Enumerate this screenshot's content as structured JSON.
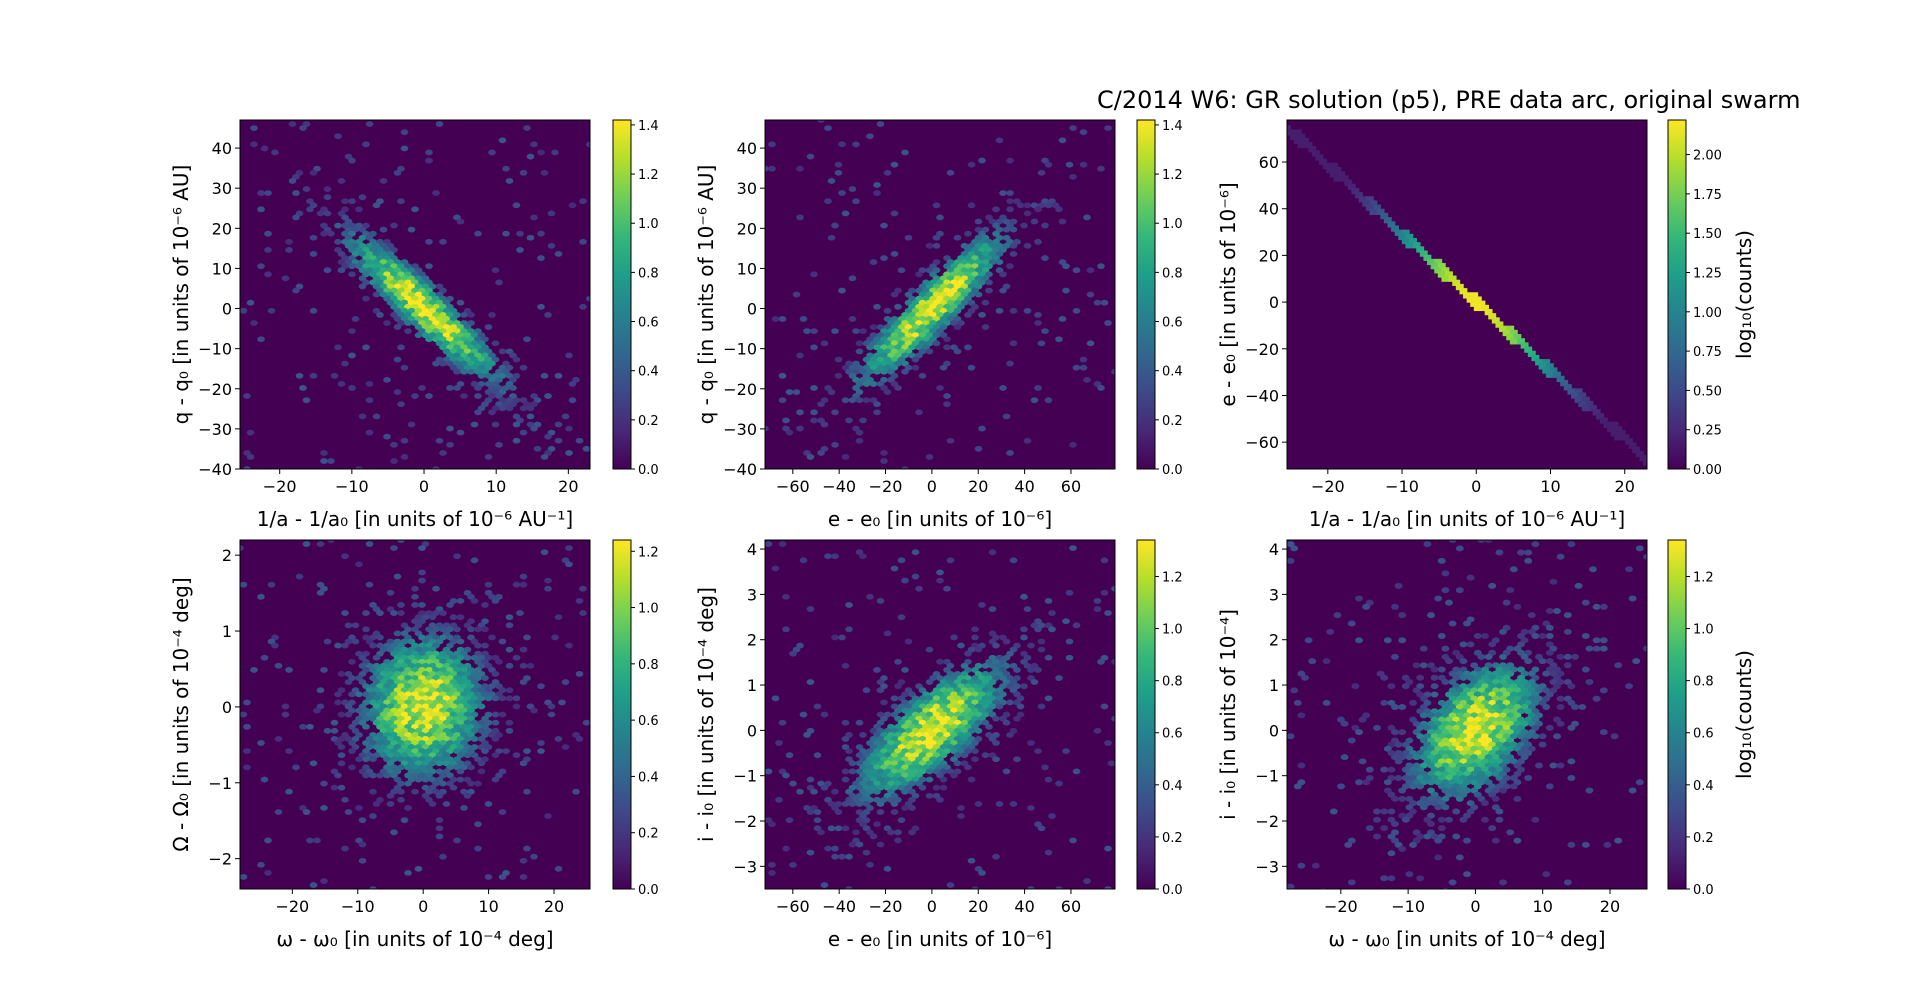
{
  "figure_title": "C/2014 W6: GR solution (p5), PRE data arc,  original swarm",
  "chart_data": [
    {
      "type": "heatmap",
      "subtype": "hexbin",
      "id": "p1",
      "xlabel": "1/a - 1/a₀ [in units of 10⁻⁶ AU⁻¹]",
      "ylabel": "q - q₀ [in units of 10⁻⁶ AU]",
      "xlim": [
        -25.5,
        23
      ],
      "ylim": [
        -40,
        47
      ],
      "xticks": [
        -20,
        -10,
        0,
        10,
        20
      ],
      "xtick_labels": [
        "−20",
        "−10",
        "0",
        "10",
        "20"
      ],
      "yticks": [
        -40,
        -30,
        -20,
        -10,
        0,
        10,
        20,
        30,
        40
      ],
      "ytick_labels": [
        "−40",
        "−30",
        "−20",
        "−10",
        "0",
        "10",
        "20",
        "30",
        "40"
      ],
      "sigma_x": 7.5,
      "sigma_y": 13,
      "correlation": -0.92,
      "colorbar": {
        "label": "",
        "range": [
          0,
          1.42
        ],
        "ticks": [
          0.0,
          0.2,
          0.4,
          0.6,
          0.8,
          1.0,
          1.2,
          1.4
        ],
        "tick_labels": [
          "0.0",
          "0.2",
          "0.4",
          "0.6",
          "0.8",
          "1.0",
          "1.2",
          "1.4"
        ]
      }
    },
    {
      "type": "heatmap",
      "subtype": "hexbin",
      "id": "p2",
      "xlabel": "e - e₀ [in units of 10⁻⁶]",
      "ylabel": "q - q₀ [in units of 10⁻⁶ AU]",
      "xlim": [
        -72,
        79
      ],
      "ylim": [
        -40,
        47
      ],
      "xticks": [
        -60,
        -40,
        -20,
        0,
        20,
        40,
        60
      ],
      "xtick_labels": [
        "−60",
        "−40",
        "−20",
        "0",
        "20",
        "40",
        "60"
      ],
      "yticks": [
        -40,
        -30,
        -20,
        -10,
        0,
        10,
        20,
        30,
        40
      ],
      "ytick_labels": [
        "−40",
        "−30",
        "−20",
        "−10",
        "0",
        "10",
        "20",
        "30",
        "40"
      ],
      "sigma_x": 22,
      "sigma_y": 13,
      "correlation": 0.9,
      "colorbar": {
        "label": "",
        "range": [
          0,
          1.42
        ],
        "ticks": [
          0.0,
          0.2,
          0.4,
          0.6,
          0.8,
          1.0,
          1.2,
          1.4
        ],
        "tick_labels": [
          "0.0",
          "0.2",
          "0.4",
          "0.6",
          "0.8",
          "1.0",
          "1.2",
          "1.4"
        ]
      }
    },
    {
      "type": "heatmap",
      "subtype": "hexbin",
      "id": "p3",
      "xlabel": "1/a - 1/a₀ [in units of 10⁻⁶ AU⁻¹]",
      "ylabel": "e - e₀ [in units of 10⁻⁶]",
      "xlim": [
        -25.5,
        23
      ],
      "ylim": [
        -71.5,
        78
      ],
      "xticks": [
        -20,
        -10,
        0,
        10,
        20
      ],
      "xtick_labels": [
        "−20",
        "−10",
        "0",
        "10",
        "20"
      ],
      "yticks": [
        -60,
        -40,
        -20,
        0,
        20,
        40,
        60
      ],
      "ytick_labels": [
        "−60",
        "−40",
        "−20",
        "0",
        "20",
        "40",
        "60"
      ],
      "sigma_x": 7.5,
      "sigma_y": 22,
      "correlation": -0.999,
      "colorbar": {
        "label": "log₁₀(counts)",
        "range": [
          0,
          2.22
        ],
        "ticks": [
          0.0,
          0.25,
          0.5,
          0.75,
          1.0,
          1.25,
          1.5,
          1.75,
          2.0
        ],
        "tick_labels": [
          "0.00",
          "0.25",
          "0.50",
          "0.75",
          "1.00",
          "1.25",
          "1.50",
          "1.75",
          "2.00"
        ]
      }
    },
    {
      "type": "heatmap",
      "subtype": "hexbin",
      "id": "p4",
      "xlabel": "ω - ω₀ [in units of 10⁻⁴ deg]",
      "ylabel": "Ω - Ω₀ [in units of 10⁻⁴ deg]",
      "xlim": [
        -28,
        25.5
      ],
      "ylim": [
        -2.4,
        2.2
      ],
      "xticks": [
        -20,
        -10,
        0,
        10,
        20
      ],
      "xtick_labels": [
        "−20",
        "−10",
        "0",
        "10",
        "20"
      ],
      "yticks": [
        -2,
        -1,
        0,
        1,
        2
      ],
      "ytick_labels": [
        "−2",
        "−1",
        "0",
        "1",
        "2"
      ],
      "sigma_x": 6.5,
      "sigma_y": 0.65,
      "correlation": 0.05,
      "colorbar": {
        "label": "",
        "range": [
          0,
          1.24
        ],
        "ticks": [
          0.0,
          0.2,
          0.4,
          0.6,
          0.8,
          1.0,
          1.2
        ],
        "tick_labels": [
          "0.0",
          "0.2",
          "0.4",
          "0.6",
          "0.8",
          "1.0",
          "1.2"
        ]
      }
    },
    {
      "type": "heatmap",
      "subtype": "hexbin",
      "id": "p5",
      "xlabel": "e - e₀ [in units of 10⁻⁶]",
      "ylabel": "i - i₀ [in units of 10⁻⁴ deg]",
      "xlim": [
        -72,
        79
      ],
      "ylim": [
        -3.5,
        4.2
      ],
      "xticks": [
        -60,
        -40,
        -20,
        0,
        20,
        40,
        60
      ],
      "xtick_labels": [
        "−60",
        "−40",
        "−20",
        "0",
        "20",
        "40",
        "60"
      ],
      "yticks": [
        -3,
        -2,
        -1,
        0,
        1,
        2,
        3,
        4
      ],
      "ytick_labels": [
        "−3",
        "−2",
        "−1",
        "0",
        "1",
        "2",
        "3",
        "4"
      ],
      "sigma_x": 22,
      "sigma_y": 1.05,
      "correlation": 0.75,
      "colorbar": {
        "label": "",
        "range": [
          0,
          1.34
        ],
        "ticks": [
          0.0,
          0.2,
          0.4,
          0.6,
          0.8,
          1.0,
          1.2
        ],
        "tick_labels": [
          "0.0",
          "0.2",
          "0.4",
          "0.6",
          "0.8",
          "1.0",
          "1.2"
        ]
      }
    },
    {
      "type": "heatmap",
      "subtype": "hexbin",
      "id": "p6",
      "xlabel": "ω - ω₀ [in units of 10⁻⁴ deg]",
      "ylabel": "i - i₀ [in units of 10⁻⁴]",
      "xlim": [
        -28,
        25.5
      ],
      "ylim": [
        -3.5,
        4.2
      ],
      "xticks": [
        -20,
        -10,
        0,
        10,
        20
      ],
      "xtick_labels": [
        "−20",
        "−10",
        "0",
        "10",
        "20"
      ],
      "yticks": [
        -3,
        -2,
        -1,
        0,
        1,
        2,
        3,
        4
      ],
      "ytick_labels": [
        "−3",
        "−2",
        "−1",
        "0",
        "1",
        "2",
        "3",
        "4"
      ],
      "sigma_x": 6.5,
      "sigma_y": 1.05,
      "correlation": 0.45,
      "colorbar": {
        "label": "log₁₀(counts)",
        "range": [
          0,
          1.34
        ],
        "ticks": [
          0.0,
          0.2,
          0.4,
          0.6,
          0.8,
          1.0,
          1.2
        ],
        "tick_labels": [
          "0.0",
          "0.2",
          "0.4",
          "0.6",
          "0.8",
          "1.0",
          "1.2"
        ]
      }
    }
  ],
  "colors": {
    "background": "#440154",
    "viridis": [
      "#440154",
      "#482878",
      "#3e4989",
      "#31688e",
      "#26828e",
      "#1f9e89",
      "#35b779",
      "#6ece58",
      "#b5de2b",
      "#fde725"
    ]
  }
}
